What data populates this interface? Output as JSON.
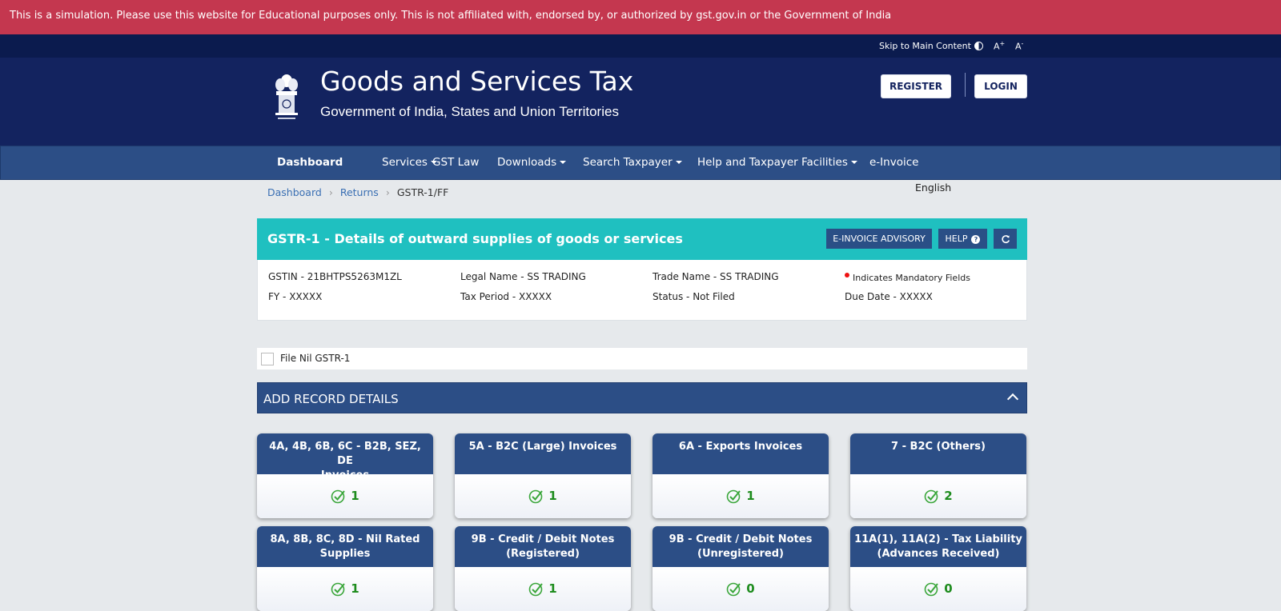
{
  "banner": {
    "text": "This is a simulation. Please use this website for Educational purposes only. This is not affiliated with, endorsed by, or authorized by gst.gov.in or the Government of India"
  },
  "utility": {
    "skip": "Skip to Main Content",
    "font_increase": "A",
    "font_increase_sup": "+",
    "font_decrease": "A",
    "font_decrease_sup": "-"
  },
  "header": {
    "title": "Goods and Services Tax",
    "subtitle": "Government of India, States and Union Territories",
    "register_label": "REGISTER",
    "login_label": "LOGIN"
  },
  "nav": {
    "items": [
      {
        "label": "Dashboard"
      },
      {
        "label": "Services"
      },
      {
        "label": "GST Law"
      },
      {
        "label": "Downloads"
      },
      {
        "label": "Search Taxpayer"
      },
      {
        "label": "Help and Taxpayer Facilities"
      },
      {
        "label": "e-Invoice"
      }
    ]
  },
  "breadcrumb": {
    "items": [
      "Dashboard",
      "Returns",
      "GSTR-1/FF"
    ]
  },
  "language": "English",
  "panel": {
    "title": "GSTR-1 - Details of outward supplies of goods or services",
    "advisory_label": "E-INVOICE ADVISORY",
    "help_label": "HELP",
    "refresh_icon": "refresh-icon"
  },
  "info": {
    "gstin": "GSTIN - 21BHTPS5263M1ZL",
    "legal_name": "Legal Name - SS TRADING",
    "trade_name": "Trade Name - SS TRADING",
    "mandatory": "Indicates Mandatory Fields",
    "fy": "FY - XXXXX",
    "tax_period": "Tax Period - XXXXX",
    "status": "Status - Not Filed",
    "due_date": "Due Date - XXXXX"
  },
  "nil": {
    "label": "File Nil GSTR-1"
  },
  "section": {
    "title": "ADD RECORD DETAILS"
  },
  "tiles": [
    {
      "line1": "4A, 4B, 6B, 6C - B2B, SEZ, DE",
      "line2": "Invoices",
      "count": "1"
    },
    {
      "line1": "5A - B2C (Large) Invoices",
      "line2": "",
      "count": "1"
    },
    {
      "line1": "6A - Exports Invoices",
      "line2": "",
      "count": "1"
    },
    {
      "line1": "7 - B2C (Others)",
      "line2": "",
      "count": "2"
    },
    {
      "line1": "8A, 8B, 8C, 8D - Nil Rated",
      "line2": "Supplies",
      "count": "1"
    },
    {
      "line1": "9B - Credit / Debit Notes",
      "line2": "(Registered)",
      "count": "1"
    },
    {
      "line1": "9B - Credit / Debit Notes",
      "line2": "(Unregistered)",
      "count": "0"
    },
    {
      "line1": "11A(1), 11A(2) - Tax Liability",
      "line2": "(Advances Received)",
      "count": "0"
    }
  ]
}
